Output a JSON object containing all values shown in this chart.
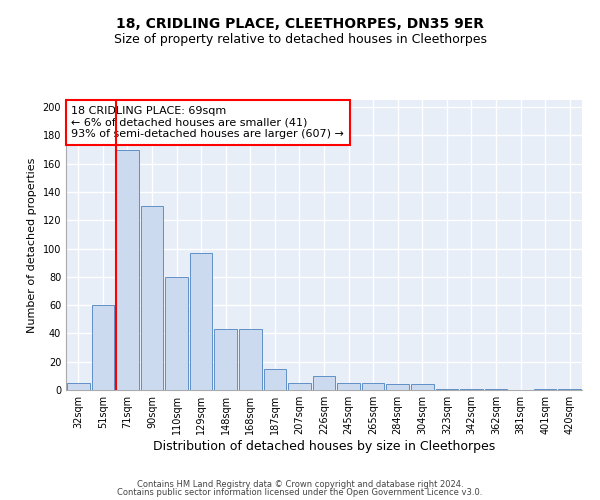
{
  "title1": "18, CRIDLING PLACE, CLEETHORPES, DN35 9ER",
  "title2": "Size of property relative to detached houses in Cleethorpes",
  "xlabel": "Distribution of detached houses by size in Cleethorpes",
  "ylabel": "Number of detached properties",
  "footnote1": "Contains HM Land Registry data © Crown copyright and database right 2024.",
  "footnote2": "Contains public sector information licensed under the Open Government Licence v3.0.",
  "bar_labels": [
    "32sqm",
    "51sqm",
    "71sqm",
    "90sqm",
    "110sqm",
    "129sqm",
    "148sqm",
    "168sqm",
    "187sqm",
    "207sqm",
    "226sqm",
    "245sqm",
    "265sqm",
    "284sqm",
    "304sqm",
    "323sqm",
    "342sqm",
    "362sqm",
    "381sqm",
    "401sqm",
    "420sqm"
  ],
  "bar_values": [
    5,
    60,
    170,
    130,
    80,
    97,
    43,
    43,
    15,
    5,
    10,
    5,
    5,
    4,
    4,
    1,
    1,
    1,
    0,
    1,
    1
  ],
  "bar_color": "#ccdaf0",
  "bar_edge_color": "#6090c8",
  "red_line_index": 2,
  "annotation_text": "18 CRIDLING PLACE: 69sqm\n← 6% of detached houses are smaller (41)\n93% of semi-detached houses are larger (607) →",
  "annotation_box_color": "white",
  "annotation_box_edge": "red",
  "background_color": "#e8eef8",
  "ylim": [
    0,
    205
  ],
  "yticks": [
    0,
    20,
    40,
    60,
    80,
    100,
    120,
    140,
    160,
    180,
    200
  ],
  "grid_color": "white",
  "title_fontsize": 10,
  "subtitle_fontsize": 9,
  "xlabel_fontsize": 9,
  "ylabel_fontsize": 8,
  "tick_fontsize": 7,
  "annotation_fontsize": 8,
  "footnote_fontsize": 6
}
